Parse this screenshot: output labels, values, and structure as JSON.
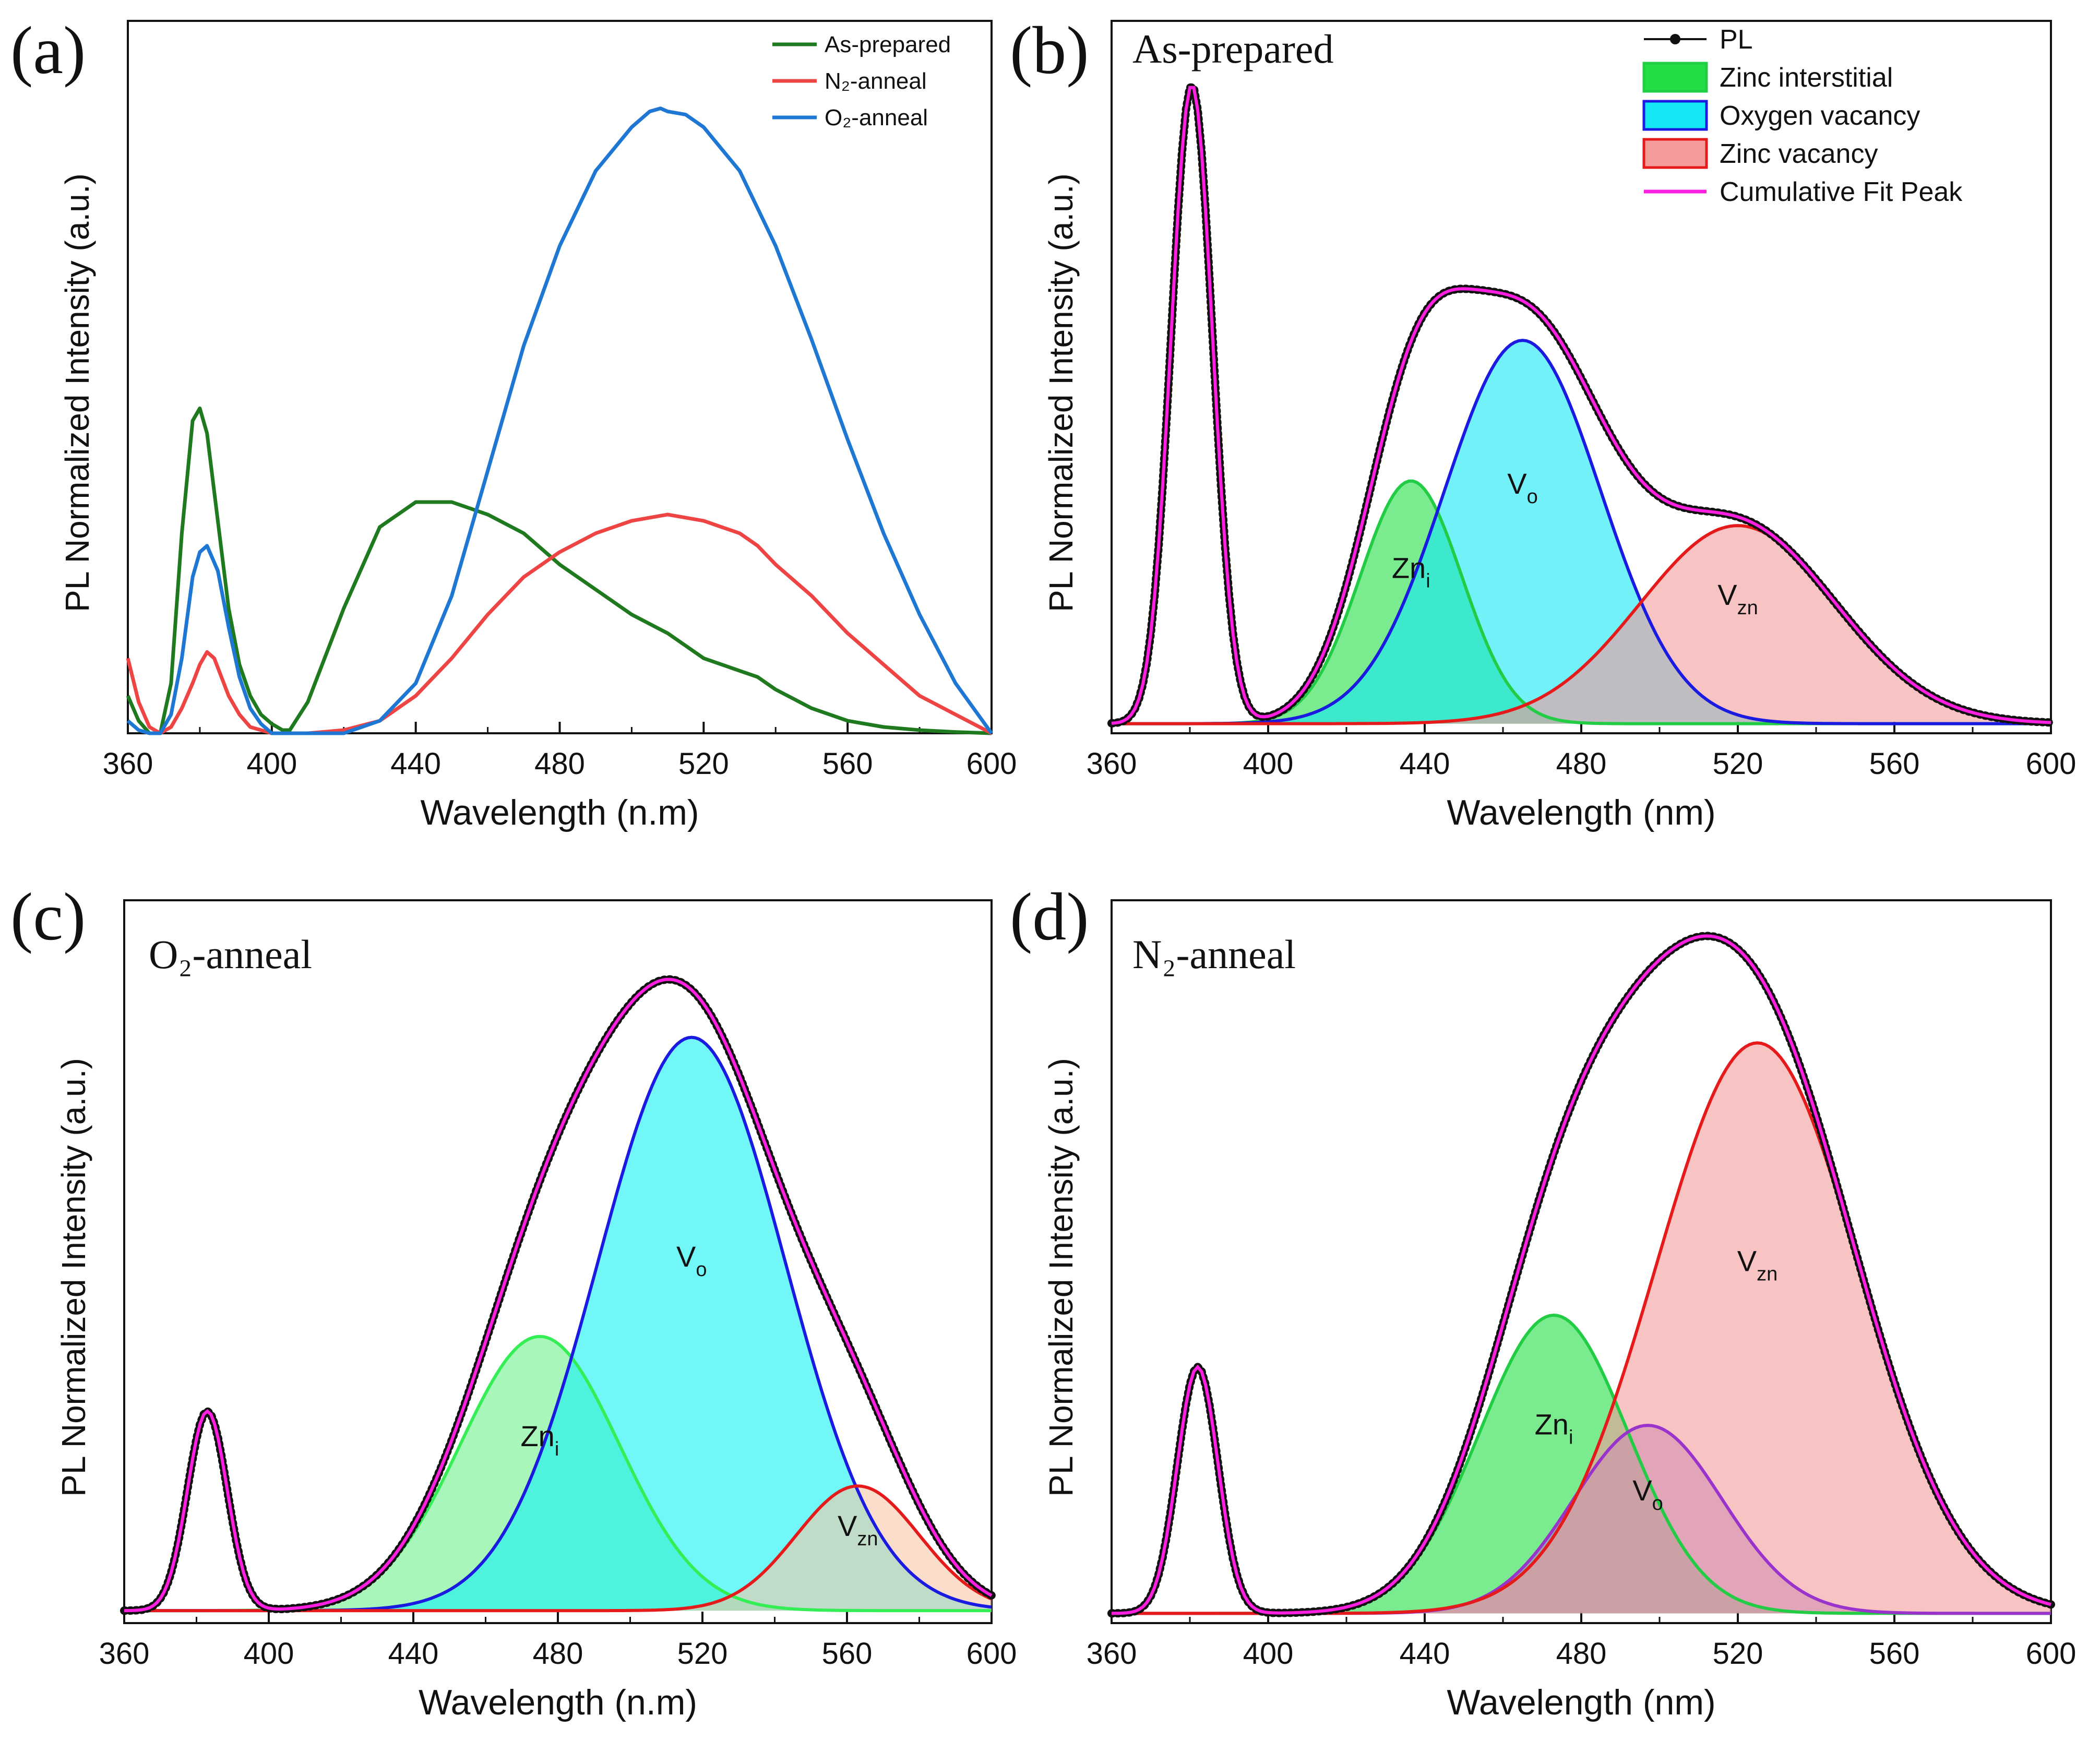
{
  "figure": {
    "panels": [
      {
        "letter": "(a)",
        "title": ""
      },
      {
        "letter": "(b)",
        "title": "As-prepared"
      },
      {
        "letter": "(c)",
        "title": "O₂-anneal"
      },
      {
        "letter": "(d)",
        "title": "N₂-anneal"
      }
    ],
    "colors": {
      "as_prepared": "#1f7a1f",
      "n2": "#ef4444",
      "o2": "#1f77d4",
      "pl": "#111111",
      "fit": "#ff1fe0",
      "zni_fill": "#22dd44",
      "zni_line": "#22cc44",
      "vo_fill": "#14e8f5",
      "vo_line": "#1a1ae0",
      "vzn_fill": "#f49b9b",
      "vzn_line": "#e51b1b"
    }
  },
  "chart_data": [
    {
      "id": "a",
      "type": "line",
      "title": "",
      "xlabel": "Wavelength (n.m)",
      "ylabel": "PL Normalized Intensity (a.u.)",
      "xlim": [
        360,
        600
      ],
      "ylim": [
        0,
        1.14
      ],
      "xticks": [
        360,
        400,
        440,
        480,
        520,
        560,
        600
      ],
      "legend_position": "top-right",
      "series": [
        {
          "name": "As-prepared",
          "color": "#1f7a1f",
          "x": [
            360,
            363,
            366,
            369,
            372,
            375,
            378,
            380,
            382,
            385,
            388,
            391,
            394,
            397,
            400,
            403,
            405,
            410,
            420,
            430,
            440,
            445,
            450,
            460,
            470,
            480,
            490,
            500,
            510,
            520,
            525,
            530,
            535,
            540,
            550,
            560,
            570,
            580,
            590,
            600
          ],
          "y": [
            0.06,
            0.02,
            0.0,
            0.0,
            0.08,
            0.32,
            0.5,
            0.52,
            0.48,
            0.34,
            0.2,
            0.11,
            0.06,
            0.03,
            0.015,
            0.005,
            0.005,
            0.05,
            0.2,
            0.33,
            0.37,
            0.37,
            0.37,
            0.35,
            0.32,
            0.27,
            0.23,
            0.19,
            0.16,
            0.12,
            0.11,
            0.1,
            0.09,
            0.07,
            0.04,
            0.02,
            0.01,
            0.005,
            0.002,
            0.0
          ]
        },
        {
          "name": "N₂-anneal",
          "color": "#ef4444",
          "x": [
            360,
            363,
            366,
            369,
            372,
            375,
            378,
            380,
            382,
            384,
            386,
            388,
            391,
            394,
            397,
            400,
            405,
            410,
            420,
            430,
            440,
            445,
            450,
            460,
            470,
            480,
            490,
            500,
            505,
            510,
            515,
            520,
            525,
            530,
            535,
            540,
            550,
            560,
            570,
            580,
            590,
            600
          ],
          "y": [
            0.12,
            0.05,
            0.01,
            0.0,
            0.01,
            0.04,
            0.08,
            0.11,
            0.13,
            0.12,
            0.09,
            0.06,
            0.03,
            0.01,
            0.005,
            0.0,
            0.0,
            0.0,
            0.005,
            0.02,
            0.06,
            0.09,
            0.12,
            0.19,
            0.25,
            0.29,
            0.32,
            0.34,
            0.345,
            0.35,
            0.345,
            0.34,
            0.33,
            0.32,
            0.3,
            0.27,
            0.22,
            0.16,
            0.11,
            0.06,
            0.03,
            0.0
          ]
        },
        {
          "name": "O₂-anneal",
          "color": "#1f77d4",
          "x": [
            360,
            363,
            366,
            369,
            372,
            375,
            378,
            380,
            382,
            385,
            388,
            391,
            394,
            397,
            400,
            405,
            410,
            420,
            430,
            440,
            450,
            460,
            470,
            480,
            490,
            500,
            505,
            508,
            510,
            515,
            520,
            530,
            540,
            550,
            560,
            570,
            580,
            590,
            600
          ],
          "y": [
            0.02,
            0.005,
            0.0,
            0.0,
            0.03,
            0.12,
            0.25,
            0.29,
            0.3,
            0.26,
            0.17,
            0.09,
            0.04,
            0.015,
            0.0,
            0.0,
            0.0,
            0.0,
            0.02,
            0.08,
            0.22,
            0.42,
            0.62,
            0.78,
            0.9,
            0.97,
            0.995,
            1.0,
            0.995,
            0.99,
            0.97,
            0.9,
            0.78,
            0.63,
            0.47,
            0.32,
            0.19,
            0.08,
            0.0
          ]
        }
      ]
    },
    {
      "id": "b",
      "type": "line",
      "title": "As-prepared",
      "xlabel": "Wavelength (nm)",
      "ylabel": "PL Normalized Intensity (a.u.)",
      "xlim": [
        360,
        600
      ],
      "ylim": [
        -0.015,
        1.1
      ],
      "xticks": [
        360,
        400,
        440,
        480,
        520,
        560,
        600
      ],
      "legend_position": "top-right",
      "legend": [
        "PL",
        "Zinc interstitial",
        "Oxygen vacancy",
        "Zinc vacancy",
        "Cumulative Fit Peak"
      ],
      "gaussians": [
        {
          "name": "Zinc interstitial",
          "label": "Zn",
          "label_sub": "i",
          "center": 436.5,
          "sigma": 13,
          "amp": 0.38,
          "fill": "#22dd44",
          "line": "#22cc44"
        },
        {
          "name": "Oxygen vacancy",
          "label": "V",
          "label_sub": "o",
          "center": 465,
          "sigma": 20,
          "amp": 0.6,
          "fill": "#14e8f5",
          "line": "#1a1ae0"
        },
        {
          "name": "Zinc vacancy",
          "label": "V",
          "label_sub": "zn",
          "center": 520,
          "sigma": 25,
          "amp": 0.31,
          "fill": "#f49b9b",
          "line": "#e51b1b"
        }
      ],
      "band_edge": {
        "center": 380.5,
        "sigma": 5.3,
        "amp": 1.0
      },
      "pl_series": {
        "name": "PL",
        "color": "#111111"
      },
      "fit_series": {
        "name": "Cumulative Fit Peak",
        "color": "#ff1fe0"
      }
    },
    {
      "id": "c",
      "type": "line",
      "title": "O₂-anneal",
      "xlabel": "Wavelength (n.m)",
      "ylabel": "PL Normalized Intensity (a.u.)",
      "xlim": [
        360,
        600
      ],
      "ylim": [
        -0.02,
        1.14
      ],
      "xticks": [
        360,
        400,
        440,
        480,
        520,
        560,
        600
      ],
      "gaussians": [
        {
          "name": "Zinc interstitial",
          "label": "Zn",
          "label_sub": "i",
          "center": 475,
          "sigma": 22,
          "amp": 0.44,
          "fill": "#6ef08a",
          "line": "#33ee55"
        },
        {
          "name": "Oxygen vacancy",
          "label": "V",
          "label_sub": "o",
          "center": 517,
          "sigma": 26,
          "amp": 0.92,
          "fill": "#14f2f5",
          "line": "#1a1ae0"
        },
        {
          "name": "Zinc vacancy",
          "label": "V",
          "label_sub": "zn",
          "center": 563,
          "sigma": 17,
          "amp": 0.2,
          "fill": "#f6c8a8",
          "line": "#e51b1b"
        }
      ],
      "band_edge": {
        "center": 383,
        "sigma": 5.5,
        "amp": 0.32
      },
      "pl_series": {
        "name": "PL",
        "color": "#111111"
      },
      "fit_series": {
        "name": "Cumulative Fit Peak",
        "color": "#ff1fe0"
      }
    },
    {
      "id": "d",
      "type": "line",
      "title": "N₂-anneal",
      "xlabel": "Wavelength (nm)",
      "ylabel": "PL Normalized Intensity (a.u.)",
      "xlim": [
        360,
        600
      ],
      "ylim": [
        -0.015,
        1.1
      ],
      "xticks": [
        360,
        400,
        440,
        480,
        520,
        560,
        600
      ],
      "gaussians": [
        {
          "name": "Zinc interstitial",
          "label": "Zn",
          "label_sub": "i",
          "center": 473,
          "sigma": 19,
          "amp": 0.46,
          "fill": "#22dd44",
          "line": "#22cc44"
        },
        {
          "name": "Oxygen vacancy",
          "label": "V",
          "label_sub": "o",
          "center": 497,
          "sigma": 19,
          "amp": 0.29,
          "fill": "#9f7fd0",
          "line": "#9933cc"
        },
        {
          "name": "Zinc vacancy",
          "label": "V",
          "label_sub": "zn",
          "center": 525,
          "sigma": 26,
          "amp": 0.88,
          "fill": "#f49b9b",
          "line": "#e51b1b"
        }
      ],
      "band_edge": {
        "center": 382,
        "sigma": 5.2,
        "amp": 0.38
      },
      "pl_series": {
        "name": "PL",
        "color": "#111111"
      },
      "fit_series": {
        "name": "Cumulative Fit Peak",
        "color": "#ff1fe0"
      }
    }
  ]
}
